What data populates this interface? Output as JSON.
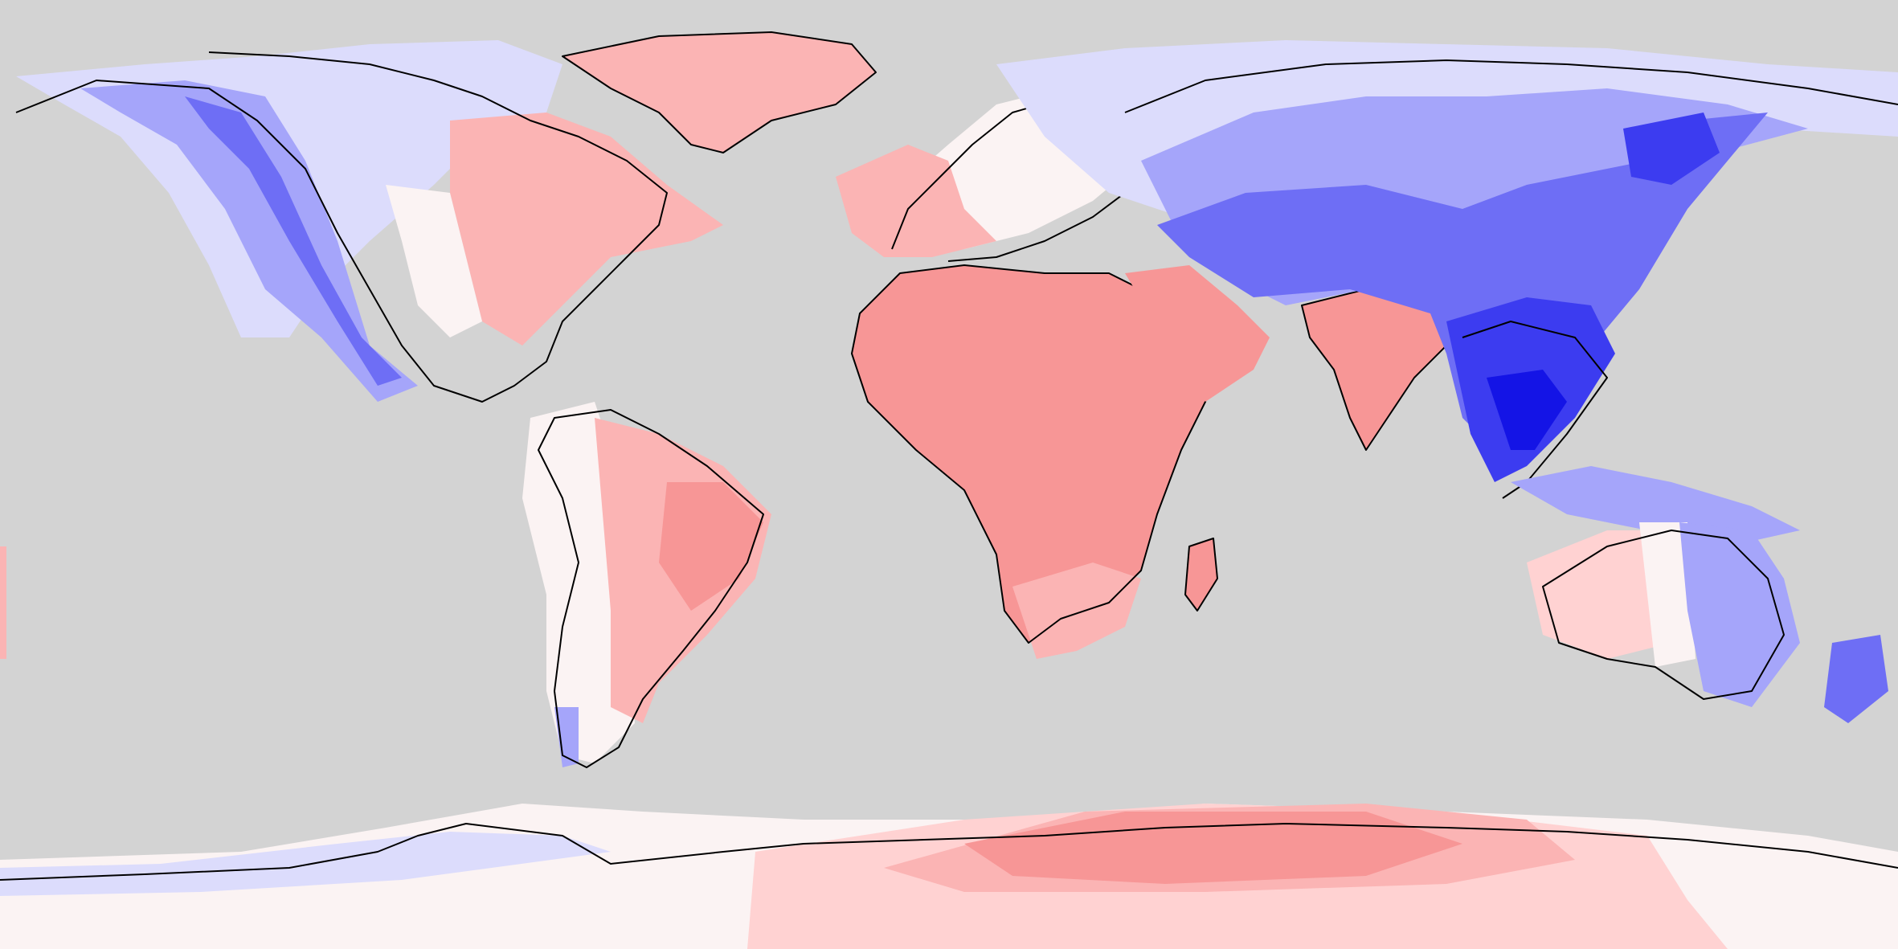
{
  "map": {
    "projection": "equirectangular",
    "extent": {
      "lon": [
        -180,
        180
      ],
      "lat": [
        -90,
        90
      ]
    },
    "style": "filled-contour",
    "colors": {
      "ocean": "#d3d3d3",
      "coastline": "#000000",
      "blue_darkest": "#1414e6",
      "blue_dark": "#3c3cf0",
      "blue_mid": "#6e6ef5",
      "blue_light": "#a5a5fa",
      "blue_pale": "#dcdcfc",
      "white": "#fbf3f3",
      "red_pale": "#ffd2d2",
      "red_light": "#fbb4b4",
      "red_mid": "#f79696"
    },
    "legend": "none",
    "title": ""
  }
}
